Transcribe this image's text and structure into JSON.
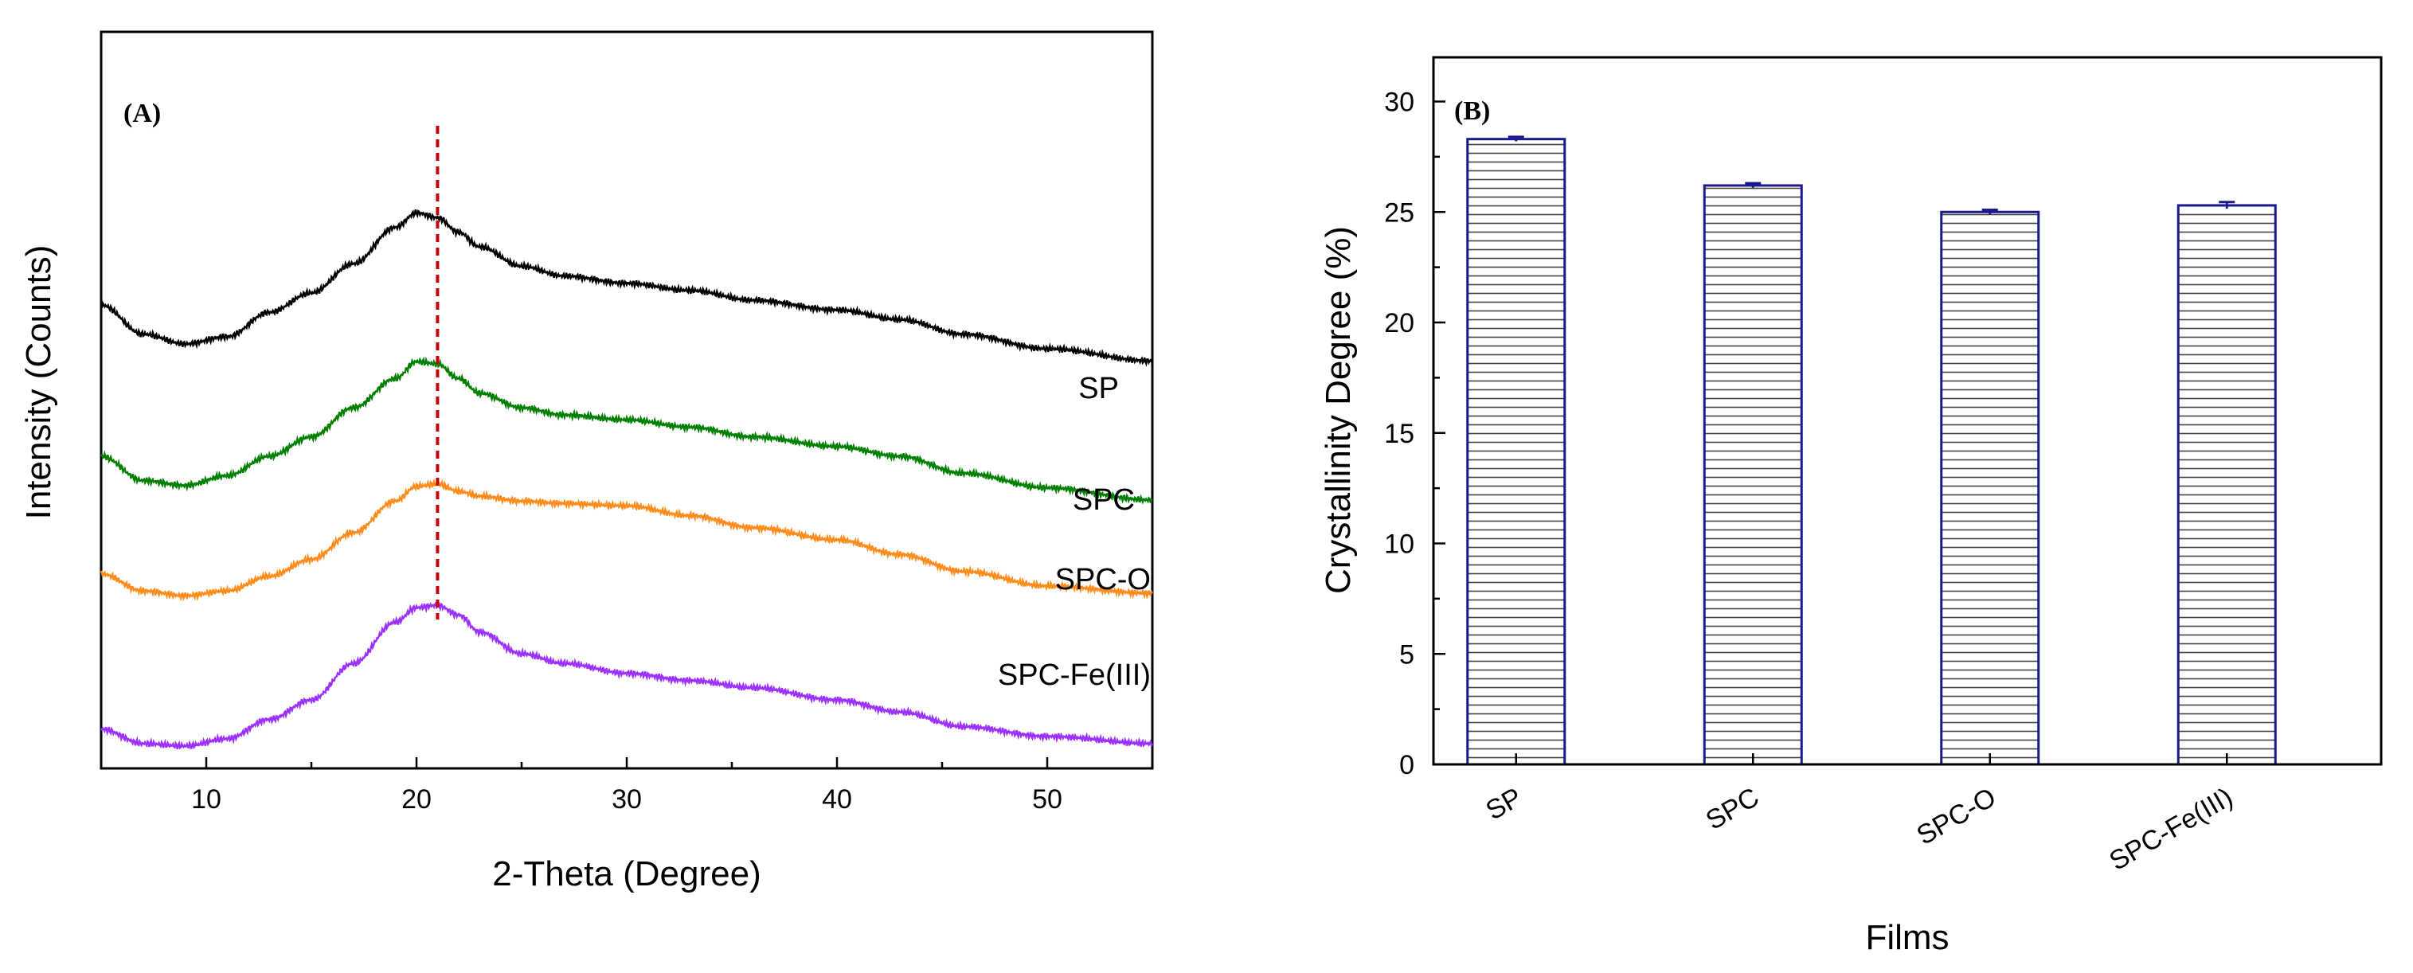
{
  "chart_data": [
    {
      "type": "line",
      "panel_label": "(A)",
      "xlabel": "2-Theta (Degree)",
      "ylabel": "Intensity (Counts)",
      "xlim": [
        5,
        55
      ],
      "xticks": [
        10,
        20,
        30,
        40,
        50
      ],
      "reference_line_x": 21,
      "x": [
        5,
        7,
        9,
        11,
        13,
        15,
        17,
        19,
        20,
        21,
        22,
        23,
        25,
        27,
        30,
        33,
        36,
        40,
        43,
        46,
        50,
        55
      ],
      "series": [
        {
          "name": "SP",
          "color": "#000000",
          "values": [
            58,
            46,
            42,
            45,
            55,
            63,
            75,
            90,
            96,
            94,
            88,
            82,
            74,
            70,
            67,
            64,
            60,
            56,
            52,
            46,
            40,
            35
          ]
        },
        {
          "name": "SPC",
          "color": "#008000",
          "values": [
            40,
            30,
            28,
            32,
            40,
            48,
            60,
            72,
            79,
            78,
            72,
            66,
            60,
            57,
            55,
            52,
            48,
            44,
            40,
            33,
            27,
            22
          ]
        },
        {
          "name": "SPC-O",
          "color": "#ff8c1a",
          "values": [
            26,
            19,
            17,
            19,
            25,
            32,
            43,
            56,
            62,
            63,
            60,
            58,
            56,
            55,
            54,
            50,
            45,
            40,
            34,
            27,
            21,
            18
          ]
        },
        {
          "name": "SPC-Fe(III)",
          "color": "#9b30ff",
          "values": [
            8,
            2,
            1,
            4,
            12,
            20,
            35,
            52,
            58,
            59,
            55,
            48,
            39,
            35,
            31,
            28,
            25,
            20,
            15,
            9,
            5,
            2
          ]
        }
      ]
    },
    {
      "type": "bar",
      "panel_label": "(B)",
      "xlabel": "Films",
      "ylabel": "Crystallinity Degree (%)",
      "ylim": [
        0,
        32
      ],
      "yticks": [
        0,
        5,
        10,
        15,
        20,
        25,
        30
      ],
      "categories": [
        "SP",
        "SPC",
        "SPC-O",
        "SPC-Fe(III)"
      ],
      "values": [
        28.3,
        26.2,
        25.0,
        25.3
      ],
      "errors": [
        0.1,
        0.1,
        0.1,
        0.15
      ],
      "bar_edge_color": "#1a1a8c"
    }
  ]
}
